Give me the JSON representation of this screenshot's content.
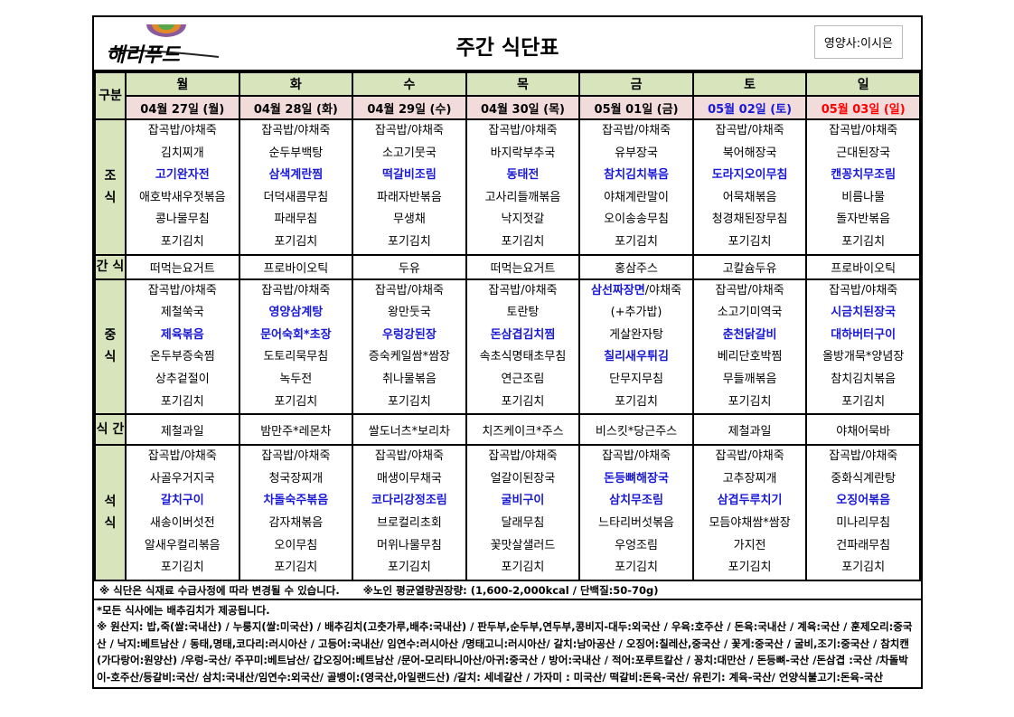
{
  "header": {
    "logo_text": "해리푸드",
    "title": "주간 식단표",
    "nutritionist": "영양사:이시은"
  },
  "row_labels": {
    "category": "구분",
    "breakfast": "조\n식",
    "snack1": "간 식",
    "lunch": "중\n식",
    "snack2": "식 간",
    "dinner": "석\n식"
  },
  "colors": {
    "header_green": "#d8e4bc",
    "date_pink": "#f2dcdb",
    "highlight_blue": "#1a1ad6",
    "saturday": "#1a1ad6",
    "sunday": "#ff0000"
  },
  "days": [
    {
      "day": "월",
      "date": "04월 27일 (월)",
      "breakfast": [
        {
          "t": "잡곡밥/야채죽"
        },
        {
          "t": "김치찌개"
        },
        {
          "t": "고기완자전",
          "h": true
        },
        {
          "t": "애호박새우젓볶음"
        },
        {
          "t": "콩나물무침"
        },
        {
          "t": "포기김치"
        }
      ],
      "snack1": "떠먹는요거트",
      "lunch": [
        {
          "t": "잡곡밥/야채죽"
        },
        {
          "t": "제철쑥국"
        },
        {
          "t": "제육볶음",
          "h": true
        },
        {
          "t": "온두부증숙찜"
        },
        {
          "t": "상추겉절이"
        },
        {
          "t": "포기김치"
        }
      ],
      "snack2": "제철과일",
      "dinner": [
        {
          "t": "잡곡밥/야채죽"
        },
        {
          "t": "사골우거지국"
        },
        {
          "t": "갈치구이",
          "h": true
        },
        {
          "t": "새송이버섯전"
        },
        {
          "t": "알새우컬리볶음"
        },
        {
          "t": "포기김치"
        }
      ]
    },
    {
      "day": "화",
      "date": "04월 28일 (화)",
      "breakfast": [
        {
          "t": "잡곡밥/야채죽"
        },
        {
          "t": "순두부백탕"
        },
        {
          "t": "삼색계란찜",
          "h": true
        },
        {
          "t": "더덕새콤무침"
        },
        {
          "t": "파래무침"
        },
        {
          "t": "포기김치"
        }
      ],
      "snack1": "프로바이오틱",
      "lunch": [
        {
          "t": "잡곡밥/야채죽"
        },
        {
          "t": "영양삼계탕",
          "h": true
        },
        {
          "t": "문어숙회*초장",
          "h": true
        },
        {
          "t": "도토리묵무침"
        },
        {
          "t": "녹두전"
        },
        {
          "t": "포기김치"
        }
      ],
      "snack2": "밤만주*레몬차",
      "dinner": [
        {
          "t": "잡곡밥/야채죽"
        },
        {
          "t": "청국장찌개"
        },
        {
          "t": "차돌숙주볶음",
          "h": true
        },
        {
          "t": "감자채볶음"
        },
        {
          "t": "오이무침"
        },
        {
          "t": "포기김치"
        }
      ]
    },
    {
      "day": "수",
      "date": "04월 29일 (수)",
      "breakfast": [
        {
          "t": "잡곡밥/야채죽"
        },
        {
          "t": "소고기뭇국"
        },
        {
          "t": "떡갈비조림",
          "h": true
        },
        {
          "t": "파래자반볶음"
        },
        {
          "t": "무생채"
        },
        {
          "t": "포기김치"
        }
      ],
      "snack1": "두유",
      "lunch": [
        {
          "t": "잡곡밥/야채죽"
        },
        {
          "t": "왕만둣국"
        },
        {
          "t": "우렁강된장",
          "h": true
        },
        {
          "t": "증숙케일쌈*쌈장"
        },
        {
          "t": "취나물볶음"
        },
        {
          "t": "포기김치"
        }
      ],
      "snack2": "쌀도너츠*보리차",
      "dinner": [
        {
          "t": "잡곡밥/야채죽"
        },
        {
          "t": "매생이무채국"
        },
        {
          "t": "코다리강정조림",
          "h": true
        },
        {
          "t": "브로컬리초회"
        },
        {
          "t": "머위나물무침"
        },
        {
          "t": "포기김치"
        }
      ]
    },
    {
      "day": "목",
      "date": "04월 30일 (목)",
      "breakfast": [
        {
          "t": "잡곡밥/야채죽"
        },
        {
          "t": "바지락부추국"
        },
        {
          "t": "동태전",
          "h": true
        },
        {
          "t": "고사리들깨볶음"
        },
        {
          "t": "낙지젓갈"
        },
        {
          "t": "포기김치"
        }
      ],
      "snack1": "떠먹는요거트",
      "lunch": [
        {
          "t": "잡곡밥/야채죽"
        },
        {
          "t": "토란탕"
        },
        {
          "t": "돈삼겹김치찜",
          "h": true
        },
        {
          "t": "속초식명태초무침"
        },
        {
          "t": "연근조림"
        },
        {
          "t": "포기김치"
        }
      ],
      "snack2": "치즈케이크*주스",
      "dinner": [
        {
          "t": "잡곡밥/야채죽"
        },
        {
          "t": "얼갈이된장국"
        },
        {
          "t": "굴비구이",
          "h": true
        },
        {
          "t": "달래무침"
        },
        {
          "t": "꽃맛살샐러드"
        },
        {
          "t": "포기김치"
        }
      ]
    },
    {
      "day": "금",
      "date": "05월 01일 (금)",
      "breakfast": [
        {
          "t": "잡곡밥/야채죽"
        },
        {
          "t": "유부장국"
        },
        {
          "t": "참치김치볶음",
          "h": true
        },
        {
          "t": "야채계란말이"
        },
        {
          "t": "오이송송무침"
        },
        {
          "t": "포기김치"
        }
      ],
      "snack1": "홍삼주스",
      "lunch": [
        {
          "t": "삼선짜장면",
          "h": true,
          "rest": "/야채죽"
        },
        {
          "t": "(+추가밥)"
        },
        {
          "t": "게살완자탕"
        },
        {
          "t": "칠리새우튀김",
          "h": true
        },
        {
          "t": "단무지무침"
        },
        {
          "t": "포기김치"
        }
      ],
      "snack2": "비스킷*당근주스",
      "dinner": [
        {
          "t": "잡곡밥/야채죽"
        },
        {
          "t": "돈등뼈해장국",
          "h": true
        },
        {
          "t": "삼치무조림",
          "h": true
        },
        {
          "t": "느타리버섯볶음"
        },
        {
          "t": "우엉조림"
        },
        {
          "t": "포기김치"
        }
      ]
    },
    {
      "day": "토",
      "date": "05월 02일 (토)",
      "date_color": "#1a1ad6",
      "breakfast": [
        {
          "t": "잡곡밥/야채죽"
        },
        {
          "t": "북어해장국"
        },
        {
          "t": "도라지오이무침",
          "h": true
        },
        {
          "t": "어묵채볶음"
        },
        {
          "t": "청경채된장무침"
        },
        {
          "t": "포기김치"
        }
      ],
      "snack1": "고칼슘두유",
      "lunch": [
        {
          "t": "잡곡밥/야채죽"
        },
        {
          "t": "소고기미역국"
        },
        {
          "t": "춘천닭갈비",
          "h": true
        },
        {
          "t": "베리단호박찜"
        },
        {
          "t": "무들깨볶음"
        },
        {
          "t": "포기김치"
        }
      ],
      "snack2": "제철과일",
      "dinner": [
        {
          "t": "잡곡밥/야채죽"
        },
        {
          "t": "고추장찌개"
        },
        {
          "t": "삼겹두루치기",
          "h": true
        },
        {
          "t": "모듬야채쌈*쌈장"
        },
        {
          "t": "가지전"
        },
        {
          "t": "포기김치"
        }
      ]
    },
    {
      "day": "일",
      "date": "05월 03일 (일)",
      "date_color": "#ff0000",
      "breakfast": [
        {
          "t": "잡곡밥/야채죽"
        },
        {
          "t": "근대된장국"
        },
        {
          "t": "캔꽁치무조림",
          "h": true
        },
        {
          "t": "비름나물"
        },
        {
          "t": "돌자반볶음"
        },
        {
          "t": "포기김치"
        }
      ],
      "snack1": "프로바이오틱",
      "lunch": [
        {
          "t": "잡곡밥/야채죽"
        },
        {
          "t": "시금치된장국",
          "h": true
        },
        {
          "t": "대하버터구이",
          "h": true
        },
        {
          "t": "올방개묵*양념장"
        },
        {
          "t": "참치김치볶음"
        },
        {
          "t": "포기김치"
        }
      ],
      "snack2": "야채어묵바",
      "dinner": [
        {
          "t": "잡곡밥/야채죽"
        },
        {
          "t": "중화식계란탕"
        },
        {
          "t": "오징어볶음",
          "h": true
        },
        {
          "t": "미나리무침"
        },
        {
          "t": "건파래무침"
        },
        {
          "t": "포기김치"
        }
      ]
    }
  ],
  "notes": {
    "change_notice": "※ 식단은 식재료 수급사정에 따라 변경될 수 있습니다.",
    "calorie_notice": "※노인 평균열량권장량: (1,600-2,000kcal / 단백질:50-70g)"
  },
  "footer": {
    "kimchi_notice": "*모든 식사에는 배추김치가 제공됩니다.",
    "origin": "※ 원산지: 밥,죽(쌀:국내산) / 누룽지(쌀:미국산) / 배추김치(고춧가루,배추:국내산) / 판두부,순두부,연두부,콩비지-대두:외국산 / 우육:호주산 / 돈육:국내산 / 계육:국산 / 훈제오리:중국산 / 낙지:베트남산 / 동태,명태,코다리:러시아산 / 고등어:국내산/ 임연수:러시아산 /명태고니:러시아산/ 갈치:남아공산 / 오징어:칠레산,중국산 / 꽃게:중국산 / 굴비,조기:중국산 / 참치캔(가다랑어:원양산) /우렁-국산/ 주꾸미:베트남산/ 갑오징어:베트남산 /문어-모리타니아산/아귀:중국산 / 방어:국내산 / 적어:포루트칼산 / 꽁치:대만산 / 돈등뼈-국산 /돈삼겹 :국산 /차돌박이-호주산/등갈비:국산/ 삼치:국내산/임연수:외국산/ 골뱅이:(영국산,아일랜드산) /갈치: 세네갈산 / 가자미 : 미국산/ 떡갈비:돈육-국산/ 유린기: 계육-국산/ 언양식불고기:돈육-국산"
  }
}
